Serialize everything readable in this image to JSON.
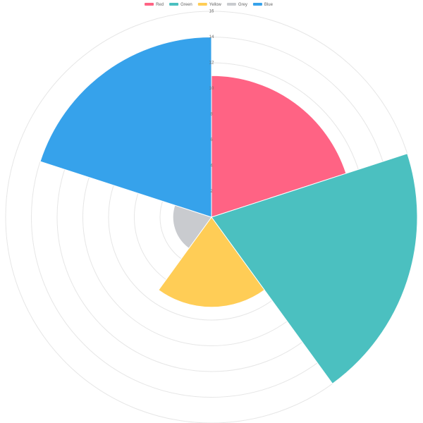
{
  "chart_data": {
    "type": "polarArea",
    "categories": [
      "Red",
      "Green",
      "Yellow",
      "Grey",
      "Blue"
    ],
    "values": [
      11,
      16,
      7,
      3,
      14
    ],
    "colors": [
      "#ff6384",
      "#4bc0c0",
      "#ffcd56",
      "#c9cbcf",
      "#36a2eb"
    ],
    "rlim": [
      0,
      16
    ],
    "rticks": [
      2,
      4,
      6,
      8,
      10,
      12,
      14,
      16
    ],
    "grid": true,
    "legend": "top"
  }
}
